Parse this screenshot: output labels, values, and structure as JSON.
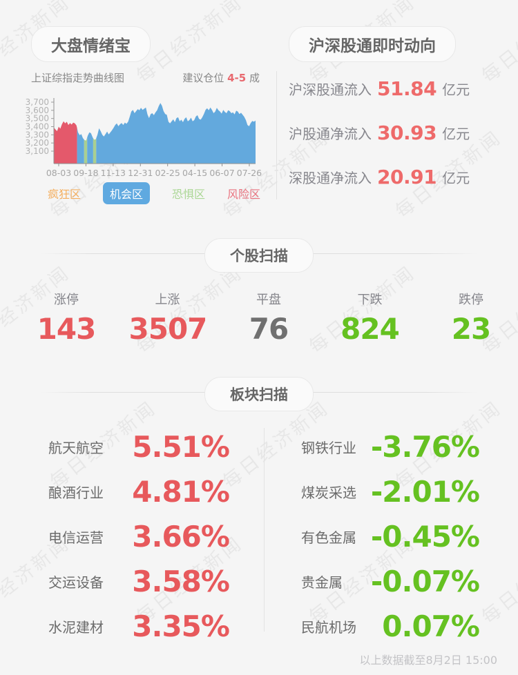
{
  "page": {
    "watermark_text": "每日经济新闻",
    "footer_note": "以上数据截至8月2日 15:00"
  },
  "colors": {
    "up": "#e7595c",
    "down": "#65c121",
    "flat": "#707070",
    "flow": "#ee6a6a",
    "advice": "#e8696f",
    "chart_red": "#e4596b",
    "chart_blue": "#63a9dd",
    "chart_green": "#a9cf91",
    "legend_orange": "#f4ae5e",
    "legend_blue": "#5fa9e0",
    "legend_green": "#abd795",
    "legend_red": "#e9737f"
  },
  "sentiment": {
    "title": "大盘情绪宝",
    "chart_subtitle": "上证综指走势曲线图",
    "advice_prefix": "建议仓位 ",
    "advice_value": "4-5",
    "advice_suffix": " 成",
    "legend": [
      {
        "label": "疯狂区",
        "color": "legend_orange",
        "active": false
      },
      {
        "label": "机会区",
        "color": "legend_blue",
        "active": true
      },
      {
        "label": "恐惧区",
        "color": "legend_green",
        "active": false
      },
      {
        "label": "风险区",
        "color": "legend_red",
        "active": false
      }
    ]
  },
  "chart_data": {
    "type": "area",
    "title": "上证综指走势曲线图",
    "ylim": [
      3100,
      3700
    ],
    "yticks": [
      "3,700",
      "3,600",
      "3,500",
      "3,400",
      "3,300",
      "3,200",
      "3,100"
    ],
    "xticks": [
      "08-03",
      "09-18",
      "11-13",
      "12-31",
      "02-25",
      "04-15",
      "06-07",
      "07-26"
    ],
    "grid": false,
    "zones": [
      {
        "end": 0.115,
        "color": "chart_red"
      },
      {
        "end": 0.15,
        "color": "chart_blue"
      },
      {
        "end": 0.165,
        "color": "chart_green"
      },
      {
        "end": 0.195,
        "color": "chart_blue"
      },
      {
        "end": 0.21,
        "color": "chart_green"
      },
      {
        "end": 1.0,
        "color": "chart_blue"
      }
    ],
    "points": [
      [
        0.0,
        3390
      ],
      [
        0.008,
        3365
      ],
      [
        0.016,
        3345
      ],
      [
        0.024,
        3400
      ],
      [
        0.032,
        3375
      ],
      [
        0.04,
        3430
      ],
      [
        0.048,
        3465
      ],
      [
        0.056,
        3440
      ],
      [
        0.064,
        3460
      ],
      [
        0.072,
        3420
      ],
      [
        0.08,
        3445
      ],
      [
        0.088,
        3425
      ],
      [
        0.096,
        3450
      ],
      [
        0.104,
        3440
      ],
      [
        0.112,
        3415
      ],
      [
        0.12,
        3330
      ],
      [
        0.128,
        3295
      ],
      [
        0.136,
        3310
      ],
      [
        0.144,
        3260
      ],
      [
        0.152,
        3235
      ],
      [
        0.16,
        3230
      ],
      [
        0.168,
        3290
      ],
      [
        0.176,
        3330
      ],
      [
        0.184,
        3320
      ],
      [
        0.192,
        3270
      ],
      [
        0.2,
        3240
      ],
      [
        0.208,
        3245
      ],
      [
        0.216,
        3300
      ],
      [
        0.224,
        3380
      ],
      [
        0.232,
        3345
      ],
      [
        0.24,
        3300
      ],
      [
        0.248,
        3280
      ],
      [
        0.256,
        3310
      ],
      [
        0.264,
        3340
      ],
      [
        0.272,
        3305
      ],
      [
        0.28,
        3330
      ],
      [
        0.288,
        3355
      ],
      [
        0.296,
        3385
      ],
      [
        0.304,
        3420
      ],
      [
        0.312,
        3440
      ],
      [
        0.32,
        3405
      ],
      [
        0.328,
        3430
      ],
      [
        0.336,
        3445
      ],
      [
        0.344,
        3420
      ],
      [
        0.352,
        3450
      ],
      [
        0.36,
        3435
      ],
      [
        0.368,
        3460
      ],
      [
        0.376,
        3520
      ],
      [
        0.384,
        3585
      ],
      [
        0.392,
        3605
      ],
      [
        0.4,
        3565
      ],
      [
        0.408,
        3590
      ],
      [
        0.416,
        3615
      ],
      [
        0.424,
        3600
      ],
      [
        0.432,
        3630
      ],
      [
        0.44,
        3605
      ],
      [
        0.448,
        3620
      ],
      [
        0.456,
        3635
      ],
      [
        0.464,
        3550
      ],
      [
        0.472,
        3505
      ],
      [
        0.48,
        3555
      ],
      [
        0.488,
        3565
      ],
      [
        0.496,
        3540
      ],
      [
        0.504,
        3575
      ],
      [
        0.512,
        3600
      ],
      [
        0.52,
        3650
      ],
      [
        0.528,
        3690
      ],
      [
        0.536,
        3655
      ],
      [
        0.544,
        3590
      ],
      [
        0.552,
        3555
      ],
      [
        0.56,
        3545
      ],
      [
        0.568,
        3460
      ],
      [
        0.576,
        3440
      ],
      [
        0.584,
        3465
      ],
      [
        0.592,
        3490
      ],
      [
        0.6,
        3455
      ],
      [
        0.608,
        3505
      ],
      [
        0.616,
        3515
      ],
      [
        0.624,
        3465
      ],
      [
        0.632,
        3485
      ],
      [
        0.64,
        3455
      ],
      [
        0.648,
        3495
      ],
      [
        0.656,
        3515
      ],
      [
        0.664,
        3465
      ],
      [
        0.672,
        3480
      ],
      [
        0.68,
        3510
      ],
      [
        0.688,
        3465
      ],
      [
        0.696,
        3480
      ],
      [
        0.704,
        3525
      ],
      [
        0.712,
        3540
      ],
      [
        0.72,
        3495
      ],
      [
        0.728,
        3485
      ],
      [
        0.736,
        3515
      ],
      [
        0.744,
        3555
      ],
      [
        0.752,
        3605
      ],
      [
        0.76,
        3625
      ],
      [
        0.768,
        3600
      ],
      [
        0.776,
        3635
      ],
      [
        0.784,
        3605
      ],
      [
        0.792,
        3565
      ],
      [
        0.8,
        3585
      ],
      [
        0.808,
        3630
      ],
      [
        0.816,
        3600
      ],
      [
        0.824,
        3585
      ],
      [
        0.832,
        3560
      ],
      [
        0.84,
        3605
      ],
      [
        0.848,
        3580
      ],
      [
        0.856,
        3565
      ],
      [
        0.864,
        3600
      ],
      [
        0.872,
        3590
      ],
      [
        0.88,
        3565
      ],
      [
        0.888,
        3575
      ],
      [
        0.896,
        3550
      ],
      [
        0.904,
        3595
      ],
      [
        0.912,
        3585
      ],
      [
        0.92,
        3555
      ],
      [
        0.928,
        3570
      ],
      [
        0.936,
        3545
      ],
      [
        0.944,
        3520
      ],
      [
        0.952,
        3480
      ],
      [
        0.96,
        3420
      ],
      [
        0.968,
        3405
      ],
      [
        0.976,
        3445
      ],
      [
        0.984,
        3470
      ],
      [
        0.992,
        3460
      ],
      [
        1.0,
        3475
      ]
    ]
  },
  "northbound": {
    "title": "沪深股通即时动向",
    "rows": [
      {
        "label": "沪深股通流入",
        "value": "51.84",
        "unit": "亿元",
        "color": "flow"
      },
      {
        "label": "沪股通净流入",
        "value": "30.93",
        "unit": "亿元",
        "color": "flow"
      },
      {
        "label": "深股通净流入",
        "value": "20.91",
        "unit": "亿元",
        "color": "flow"
      }
    ]
  },
  "stock_scan": {
    "title": "个股扫描",
    "stats": [
      {
        "label": "涨停",
        "value": "143",
        "color": "up"
      },
      {
        "label": "上涨",
        "value": "3507",
        "color": "up"
      },
      {
        "label": "平盘",
        "value": "76",
        "color": "flat"
      },
      {
        "label": "下跌",
        "value": "824",
        "color": "down"
      },
      {
        "label": "跌停",
        "value": "23",
        "color": "down"
      }
    ]
  },
  "sector_scan": {
    "title": "板块扫描",
    "left": [
      {
        "name": "航天航空",
        "change": "5.51%",
        "color": "up"
      },
      {
        "name": "酿酒行业",
        "change": "4.81%",
        "color": "up"
      },
      {
        "name": "电信运营",
        "change": "3.66%",
        "color": "up"
      },
      {
        "name": "交运设备",
        "change": "3.58%",
        "color": "up"
      },
      {
        "name": "水泥建材",
        "change": "3.35%",
        "color": "up"
      }
    ],
    "right": [
      {
        "name": "钢铁行业",
        "change": "-3.76%",
        "color": "down"
      },
      {
        "name": "煤炭采选",
        "change": "-2.01%",
        "color": "down"
      },
      {
        "name": "有色金属",
        "change": "-0.45%",
        "color": "down"
      },
      {
        "name": "贵金属",
        "change": "-0.07%",
        "color": "down"
      },
      {
        "name": "民航机场",
        "change": "0.07%",
        "color": "down"
      }
    ]
  }
}
